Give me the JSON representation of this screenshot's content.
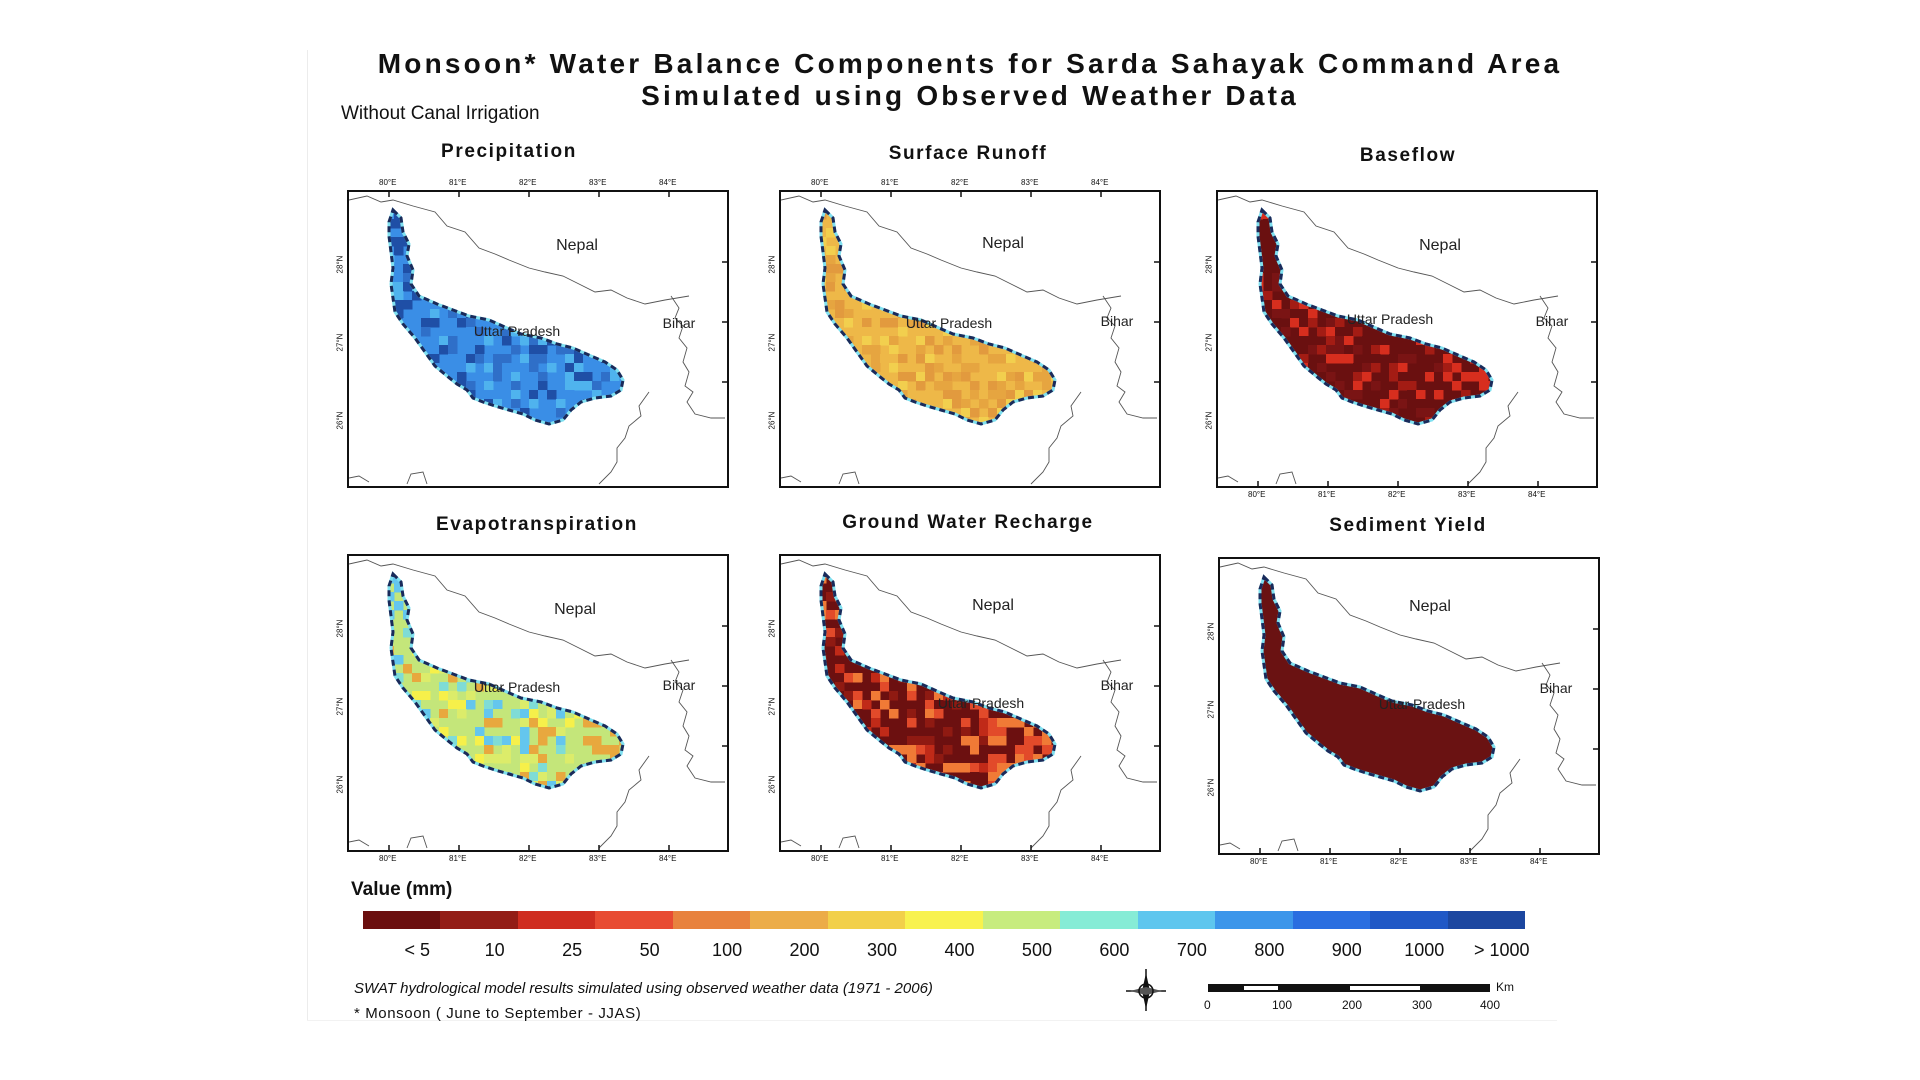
{
  "title_line1": "Monsoon* Water Balance Components for Sarda Sahayak Command Area",
  "title_line2": "Simulated using Observed Weather Data",
  "subtitle": "Without Canal Irrigation",
  "map_labels": {
    "nepal": "Nepal",
    "up": "Uttar Pradesh",
    "bihar": "Bihar"
  },
  "lon_ticks": [
    "80°E",
    "81°E",
    "82°E",
    "83°E",
    "84°E"
  ],
  "lat_ticks": [
    "28°N",
    "27°N",
    "26°N"
  ],
  "panels": [
    {
      "title": "Precipitation",
      "palette": [
        "#2f6fc8",
        "#3a8ee6",
        "#4fb3ee",
        "#1f4fa6"
      ],
      "dominant": 1
    },
    {
      "title": "Surface Runoff",
      "palette": [
        "#e6a540",
        "#eeb848",
        "#e29a3e",
        "#f2cf4e"
      ],
      "dominant": 1
    },
    {
      "title": "Baseflow",
      "palette": [
        "#6a1010",
        "#7a1414",
        "#a31c14",
        "#d72e1e"
      ],
      "dominant": 0
    },
    {
      "title": "Evapotranspiration",
      "palette": [
        "#c4e67a",
        "#dcec6a",
        "#f6f04a",
        "#e8a83e",
        "#7fdcd6",
        "#64c6ee"
      ],
      "dominant": 0
    },
    {
      "title": "Ground Water Recharge",
      "palette": [
        "#6c1010",
        "#8f1a12",
        "#c02a18",
        "#e24a2a",
        "#f07a36"
      ],
      "dominant": 0
    },
    {
      "title": "Sediment Yield",
      "palette": [
        "#6a1212",
        "#6a1212",
        "#6a1212"
      ],
      "dominant": 0
    }
  ],
  "legend": {
    "title": "Value (mm)",
    "colors": [
      "#6b0f0f",
      "#931d16",
      "#cf2d20",
      "#e84b32",
      "#e8823e",
      "#ecac48",
      "#f2d04a",
      "#f8f24e",
      "#c7ec7e",
      "#86ecd6",
      "#5ec6ee",
      "#3c96ea",
      "#2a6ee0",
      "#2058c6",
      "#1c47a0"
    ],
    "labels": [
      "< 5",
      "10",
      "25",
      "50",
      "100",
      "200",
      "300",
      "400",
      "500",
      "600",
      "700",
      "800",
      "900",
      "1000",
      "> 1000"
    ]
  },
  "footnote_model": "SWAT hydrological model results simulated using observed weather data (1971 - 2006)",
  "footnote_monsoon": "* Monsoon ( June to September - JJAS)",
  "scale": {
    "unit": "Km",
    "labels": [
      "0",
      "100",
      "200",
      "300",
      "400"
    ]
  }
}
